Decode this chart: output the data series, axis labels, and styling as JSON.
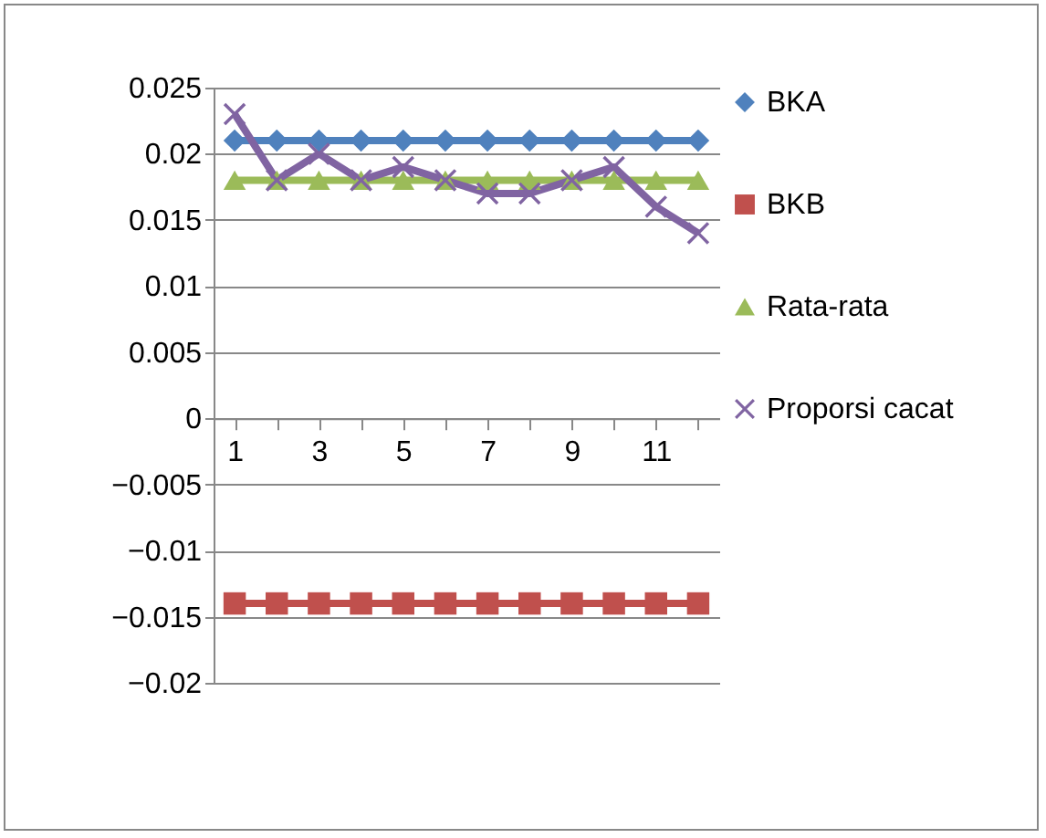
{
  "chart_data": {
    "type": "line",
    "categories": [
      "1",
      null,
      "3",
      null,
      "5",
      null,
      "7",
      null,
      "9",
      null,
      "11",
      null
    ],
    "series": [
      {
        "name": "BKA",
        "color": "#4f81bd",
        "marker": "diamond",
        "values": [
          0.021,
          0.021,
          0.021,
          0.021,
          0.021,
          0.021,
          0.021,
          0.021,
          0.021,
          0.021,
          0.021,
          0.021
        ]
      },
      {
        "name": "BKB",
        "color": "#c0504d",
        "marker": "square",
        "values": [
          -0.014,
          -0.014,
          -0.014,
          -0.014,
          -0.014,
          -0.014,
          -0.014,
          -0.014,
          -0.014,
          -0.014,
          -0.014,
          -0.014
        ]
      },
      {
        "name": "Rata-rata",
        "color": "#9bbb59",
        "marker": "triangle",
        "values": [
          0.018,
          0.018,
          0.018,
          0.018,
          0.018,
          0.018,
          0.018,
          0.018,
          0.018,
          0.018,
          0.018,
          0.018
        ]
      },
      {
        "name": "Proporsi cacat",
        "color": "#8064a2",
        "marker": "cross",
        "values": [
          0.023,
          0.018,
          0.02,
          0.018,
          0.019,
          0.018,
          0.017,
          0.017,
          0.018,
          0.019,
          0.016,
          0.014
        ]
      }
    ],
    "ylim": [
      -0.02,
      0.025
    ],
    "yticks": [
      -0.02,
      -0.015,
      -0.01,
      -0.005,
      0,
      0.005,
      0.01,
      0.015,
      0.02,
      0.025
    ],
    "grid": "y",
    "legend": "right",
    "line_style": "solid"
  }
}
